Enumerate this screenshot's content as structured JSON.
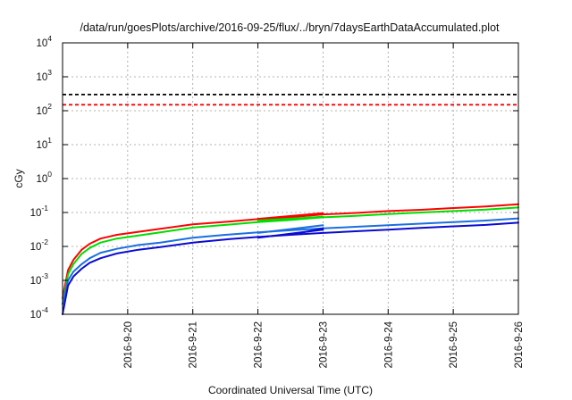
{
  "chart_data": {
    "type": "line",
    "title": "/data/run/goesPlots/archive/2016-09-25/flux/../bryn/7daysEarthDataAccumulated.plot",
    "xlabel": "Coordinated Universal Time (UTC)",
    "ylabel": "cGy",
    "y_scale": "log",
    "ylim": [
      0.0001,
      10000
    ],
    "xlim": [
      "2016-09-19T00:00",
      "2016-09-26T00:00"
    ],
    "x_ticks": [
      "2016-9-20",
      "2016-9-21",
      "2016-9-22",
      "2016-9-23",
      "2016-9-24",
      "2016-9-25",
      "2016-9-26"
    ],
    "x_tick_dates": [
      "2016-09-20T00:00",
      "2016-09-21T00:00",
      "2016-09-22T00:00",
      "2016-09-23T00:00",
      "2016-09-24T00:00",
      "2016-09-25T00:00",
      "2016-09-26T00:00"
    ],
    "y_ticks": [
      {
        "base": "10",
        "exp": "-4",
        "value": 0.0001
      },
      {
        "base": "10",
        "exp": "-3",
        "value": 0.001
      },
      {
        "base": "10",
        "exp": "-2",
        "value": 0.01
      },
      {
        "base": "10",
        "exp": "-1",
        "value": 0.1
      },
      {
        "base": "10",
        "exp": "0",
        "value": 1
      },
      {
        "base": "10",
        "exp": "1",
        "value": 10
      },
      {
        "base": "10",
        "exp": "2",
        "value": 100
      },
      {
        "base": "10",
        "exp": "3",
        "value": 1000
      },
      {
        "base": "10",
        "exp": "4",
        "value": 10000
      }
    ],
    "grid": true,
    "thresholds": [
      {
        "value": 300,
        "color": "#000000"
      },
      {
        "value": 150,
        "color": "#ff0000"
      }
    ],
    "series": [
      {
        "color": "#ff0000",
        "points": [
          [
            "2016-09-19T00:00",
            0.0003
          ],
          [
            "2016-09-19T02:00",
            0.002
          ],
          [
            "2016-09-19T04:00",
            0.004
          ],
          [
            "2016-09-19T07:00",
            0.008
          ],
          [
            "2016-09-19T10:00",
            0.012
          ],
          [
            "2016-09-19T14:00",
            0.017
          ],
          [
            "2016-09-19T20:00",
            0.022
          ],
          [
            "2016-09-20T04:00",
            0.027
          ],
          [
            "2016-09-20T12:00",
            0.033
          ],
          [
            "2016-09-21T00:00",
            0.045
          ],
          [
            "2016-09-21T12:00",
            0.053
          ],
          [
            "2016-09-22T00:00",
            0.064
          ],
          [
            "2016-09-22T12:00",
            0.073
          ],
          [
            "2016-09-23T00:00",
            0.088
          ],
          [
            "2016-09-23T12:00",
            0.097
          ],
          [
            "2016-09-24T00:00",
            0.11
          ],
          [
            "2016-09-24T12:00",
            0.12
          ],
          [
            "2016-09-25T00:00",
            0.135
          ],
          [
            "2016-09-25T12:00",
            0.15
          ],
          [
            "2016-09-26T00:00",
            0.175
          ]
        ]
      },
      {
        "color": "#ff0000",
        "points": [
          [
            "2016-09-22T00:00",
            0.065
          ],
          [
            "2016-09-23T00:00",
            0.095
          ]
        ]
      },
      {
        "color": "#00dd00",
        "points": [
          [
            "2016-09-19T00:00",
            0.0002
          ],
          [
            "2016-09-19T02:00",
            0.0015
          ],
          [
            "2016-09-19T04:00",
            0.003
          ],
          [
            "2016-09-19T07:00",
            0.006
          ],
          [
            "2016-09-19T10:00",
            0.009
          ],
          [
            "2016-09-19T14:00",
            0.013
          ],
          [
            "2016-09-19T20:00",
            0.017
          ],
          [
            "2016-09-20T04:00",
            0.021
          ],
          [
            "2016-09-20T12:00",
            0.026
          ],
          [
            "2016-09-21T00:00",
            0.036
          ],
          [
            "2016-09-21T12:00",
            0.043
          ],
          [
            "2016-09-22T00:00",
            0.052
          ],
          [
            "2016-09-22T12:00",
            0.06
          ],
          [
            "2016-09-23T00:00",
            0.072
          ],
          [
            "2016-09-23T12:00",
            0.08
          ],
          [
            "2016-09-24T00:00",
            0.09
          ],
          [
            "2016-09-24T12:00",
            0.1
          ],
          [
            "2016-09-25T00:00",
            0.11
          ],
          [
            "2016-09-25T12:00",
            0.122
          ],
          [
            "2016-09-26T00:00",
            0.14
          ]
        ]
      },
      {
        "color": "#00dd00",
        "points": [
          [
            "2016-09-22T00:00",
            0.058
          ],
          [
            "2016-09-23T00:00",
            0.075
          ]
        ]
      },
      {
        "color": "#1a6fe0",
        "points": [
          [
            "2016-09-19T00:00",
            0.0002
          ],
          [
            "2016-09-19T02:00",
            0.001
          ],
          [
            "2016-09-19T04:00",
            0.0018
          ],
          [
            "2016-09-19T07:00",
            0.003
          ],
          [
            "2016-09-19T10:00",
            0.0045
          ],
          [
            "2016-09-19T14:00",
            0.0065
          ],
          [
            "2016-09-19T20:00",
            0.0085
          ],
          [
            "2016-09-20T04:00",
            0.011
          ],
          [
            "2016-09-20T12:00",
            0.013
          ],
          [
            "2016-09-21T00:00",
            0.018
          ],
          [
            "2016-09-21T12:00",
            0.022
          ],
          [
            "2016-09-22T00:00",
            0.026
          ],
          [
            "2016-09-22T12:00",
            0.03
          ],
          [
            "2016-09-23T00:00",
            0.034
          ],
          [
            "2016-09-23T12:00",
            0.038
          ],
          [
            "2016-09-24T00:00",
            0.042
          ],
          [
            "2016-09-24T12:00",
            0.047
          ],
          [
            "2016-09-25T00:00",
            0.052
          ],
          [
            "2016-09-25T12:00",
            0.058
          ],
          [
            "2016-09-26T00:00",
            0.067
          ]
        ]
      },
      {
        "color": "#1a6fe0",
        "points": [
          [
            "2016-09-22T00:00",
            0.025
          ],
          [
            "2016-09-23T00:00",
            0.042
          ]
        ]
      },
      {
        "color": "#0a0ad0",
        "points": [
          [
            "2016-09-19T00:00",
            0.0001
          ],
          [
            "2016-09-19T02:00",
            0.0007
          ],
          [
            "2016-09-19T04:00",
            0.0013
          ],
          [
            "2016-09-19T07:00",
            0.0022
          ],
          [
            "2016-09-19T10:00",
            0.0033
          ],
          [
            "2016-09-19T14:00",
            0.0045
          ],
          [
            "2016-09-19T20:00",
            0.0062
          ],
          [
            "2016-09-20T04:00",
            0.008
          ],
          [
            "2016-09-20T12:00",
            0.0095
          ],
          [
            "2016-09-21T00:00",
            0.013
          ],
          [
            "2016-09-21T12:00",
            0.016
          ],
          [
            "2016-09-22T00:00",
            0.019
          ],
          [
            "2016-09-22T12:00",
            0.022
          ],
          [
            "2016-09-23T00:00",
            0.025
          ],
          [
            "2016-09-23T12:00",
            0.028
          ],
          [
            "2016-09-24T00:00",
            0.031
          ],
          [
            "2016-09-24T12:00",
            0.035
          ],
          [
            "2016-09-25T00:00",
            0.039
          ],
          [
            "2016-09-25T12:00",
            0.043
          ],
          [
            "2016-09-26T00:00",
            0.05
          ]
        ]
      },
      {
        "color": "#0a0ad0",
        "points": [
          [
            "2016-09-22T00:00",
            0.018
          ],
          [
            "2016-09-23T00:00",
            0.031
          ]
        ]
      },
      {
        "color": "#0a0ad0",
        "points": [
          [
            "2016-09-22T12:00",
            0.022
          ],
          [
            "2016-09-23T00:00",
            0.034
          ]
        ]
      }
    ]
  }
}
